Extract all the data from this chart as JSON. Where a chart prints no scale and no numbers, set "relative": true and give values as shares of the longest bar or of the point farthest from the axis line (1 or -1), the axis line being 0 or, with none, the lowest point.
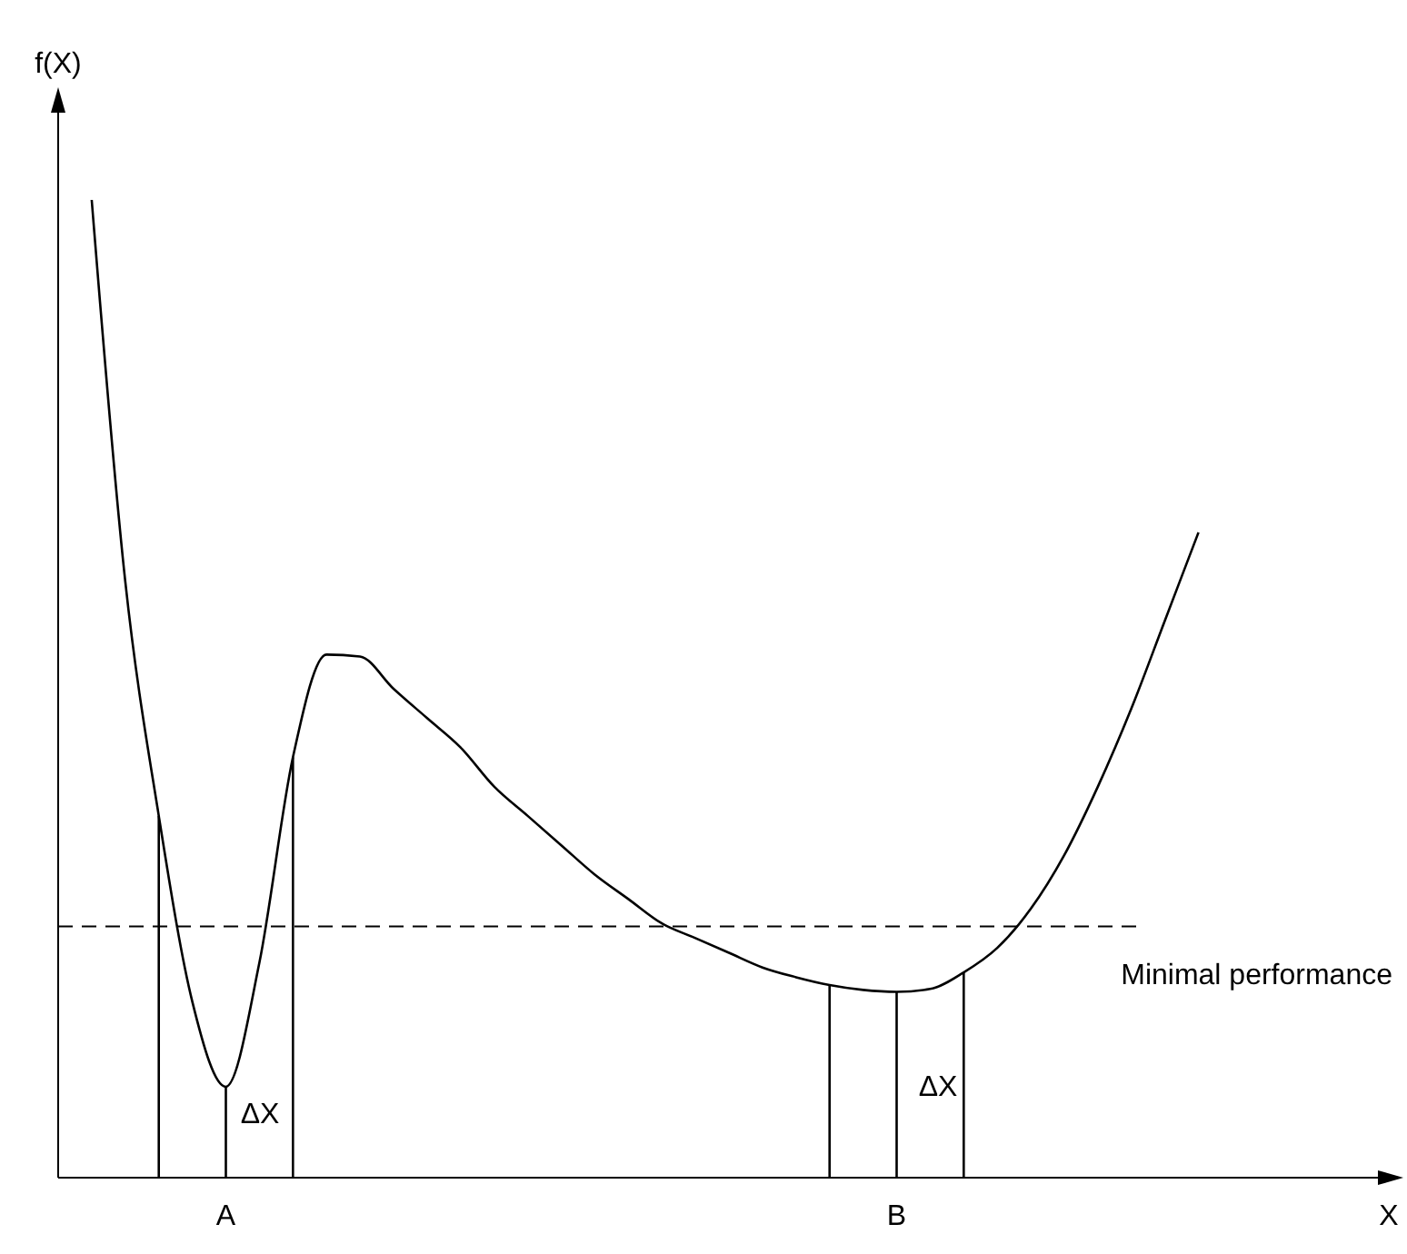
{
  "chart_data": {
    "type": "line",
    "relative": true,
    "xlabel": "X",
    "ylabel": "f(X)",
    "categories": [
      null,
      null,
      null,
      null,
      null,
      "A",
      null,
      null,
      null,
      null,
      null,
      null,
      null,
      null,
      null,
      null,
      null,
      null,
      null,
      null,
      null,
      null,
      null,
      null,
      null,
      "B",
      null,
      null,
      null,
      null,
      null,
      null,
      null,
      null,
      null,
      null,
      null,
      null,
      null,
      null,
      null
    ],
    "series": [
      {
        "color": "#000000",
        "values": [
          null,
          1.0,
          0.61,
          0.37,
          0.18,
          0.093,
          0.22,
          0.43,
          0.535,
          0.533,
          0.5,
          0.47,
          0.44,
          0.4,
          0.37,
          0.34,
          0.31,
          0.285,
          0.26,
          0.245,
          0.23,
          0.215,
          0.205,
          0.197,
          0.192,
          0.19,
          0.193,
          0.21,
          0.235,
          0.275,
          0.33,
          0.4,
          0.48,
          0.57,
          0.66,
          null,
          null,
          null,
          null,
          null,
          null
        ]
      },
      {
        "type": "bar",
        "color": "#000000",
        "values": [
          null,
          null,
          null,
          0.37,
          null,
          0.093,
          null,
          0.43,
          null,
          null,
          null,
          null,
          null,
          null,
          null,
          null,
          null,
          null,
          null,
          null,
          null,
          null,
          null,
          0.197,
          null,
          0.19,
          null,
          0.21,
          null,
          null,
          null,
          null,
          null,
          null,
          null,
          null,
          null,
          null,
          null,
          null,
          null
        ]
      }
    ],
    "ref_lines": [
      {
        "axis": "y",
        "value": 0.257,
        "label": "Minimal performance",
        "color": "#000000",
        "line_style": "dashed"
      }
    ],
    "annotations": [
      "ΔX",
      "ΔX"
    ],
    "grid": false,
    "line_style": "solid",
    "marker": "none"
  }
}
